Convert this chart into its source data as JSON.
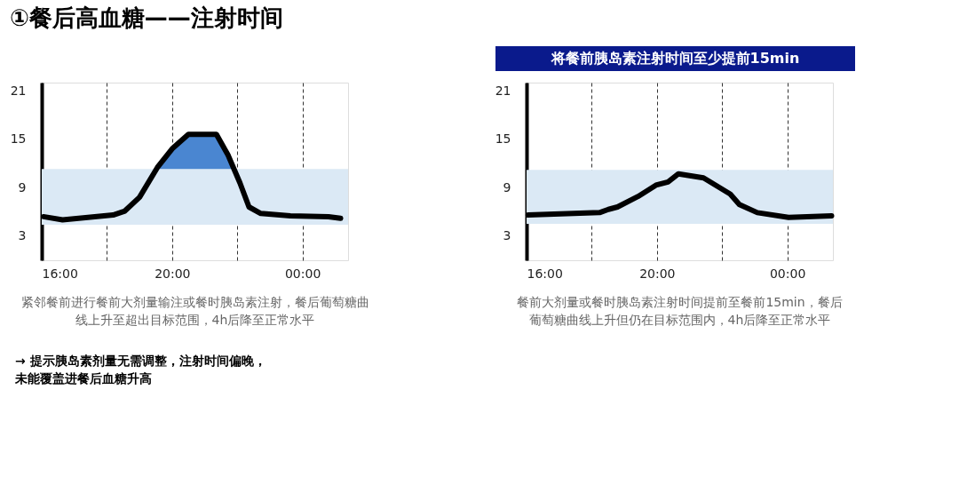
{
  "chart_data": [
    {
      "type": "line",
      "title": "①餐后高血糖——注射时间",
      "xlim": [
        16,
        25.4
      ],
      "ylim": [
        0,
        22
      ],
      "xticks": [
        {
          "value": 16,
          "label": "16:00"
        },
        {
          "value": 18,
          "label": null
        },
        {
          "value": 20,
          "label": "20:00"
        },
        {
          "value": 22,
          "label": null
        },
        {
          "value": 24,
          "label": "00:00"
        }
      ],
      "yticks": [
        3,
        9,
        15,
        21
      ],
      "grid": "x",
      "line_style": "solid",
      "marker": "none",
      "bands": [
        {
          "axis": "y",
          "from": 4.4,
          "to": 11.3,
          "color": "#dbe9f5"
        }
      ],
      "series": [
        {
          "type": "area",
          "color": "#4a86d1",
          "x": [
            19.5,
            19.55,
            20.0,
            20.5,
            21.36,
            21.72,
            21.95
          ],
          "values": [
            11.3,
            11.5,
            13.8,
            15.6,
            15.6,
            13.0,
            11.3
          ]
        },
        {
          "color": "#000000",
          "x": [
            16.05,
            16.64,
            18.19,
            18.55,
            19.0,
            19.55,
            20.0,
            20.5,
            21.36,
            21.72,
            22.08,
            22.36,
            22.72,
            23.63,
            24.8,
            25.17
          ],
          "values": [
            5.4,
            5.0,
            5.6,
            6.1,
            7.8,
            11.5,
            13.8,
            15.6,
            15.6,
            13.0,
            9.6,
            6.6,
            5.8,
            5.5,
            5.4,
            5.2
          ]
        }
      ],
      "annotations": [
        "紧邻餐前进行餐前大剂量输注或餐时胰岛素注射，餐后葡萄糖曲线上升至超出目标范围，4h后降至正常水平",
        "→ 提示胰岛素剂量无需调整，注射时间偏晚，未能覆盖进餐后血糖升高"
      ]
    },
    {
      "type": "line",
      "title": "将餐前胰岛素注射时间至少提前15min",
      "xlim": [
        16,
        25.4
      ],
      "ylim": [
        0,
        22
      ],
      "xticks": [
        {
          "value": 16,
          "label": "16:00"
        },
        {
          "value": 18,
          "label": null
        },
        {
          "value": 20,
          "label": "20:00"
        },
        {
          "value": 22,
          "label": null
        },
        {
          "value": 24,
          "label": "00:00"
        }
      ],
      "yticks": [
        3,
        9,
        15,
        21
      ],
      "grid": "x",
      "line_style": "solid",
      "marker": "none",
      "bands": [
        {
          "axis": "y",
          "from": 4.5,
          "to": 11.2,
          "color": "#dbe9f5"
        }
      ],
      "series": [
        {
          "color": "#000000",
          "x": [
            16.05,
            18.24,
            18.51,
            18.79,
            19.42,
            19.97,
            20.34,
            20.66,
            21.43,
            22.25,
            22.53,
            23.08,
            24.04,
            25.36
          ],
          "values": [
            5.6,
            5.9,
            6.3,
            6.6,
            7.9,
            9.3,
            9.7,
            10.7,
            10.2,
            8.2,
            6.9,
            5.9,
            5.3,
            5.5
          ]
        }
      ],
      "annotations": [
        "餐前大剂量或餐时胰岛素注射时间提前至餐前15min，餐后葡萄糖曲线上升但仍在目标范围内，4h后降至正常水平"
      ]
    }
  ]
}
